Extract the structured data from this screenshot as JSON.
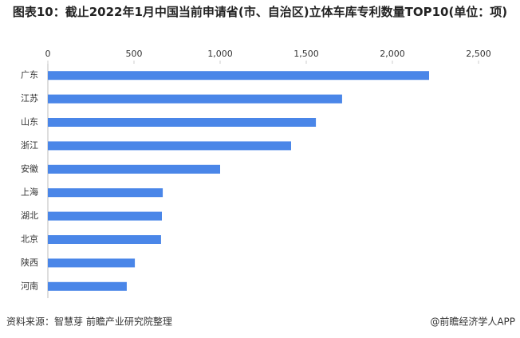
{
  "chart_data": {
    "type": "barh",
    "title": "图表10：截止2022年1月中国当前申请省(市、自治区)立体车库专利数量TOP10(单位：项)",
    "categories": [
      "广东",
      "江苏",
      "山东",
      "浙江",
      "安徽",
      "上海",
      "湖北",
      "北京",
      "陕西",
      "河南"
    ],
    "values": [
      2213,
      1708,
      1556,
      1412,
      1000,
      667,
      662,
      657,
      505,
      458
    ],
    "color": "#4a86e8",
    "xlim": [
      0,
      2500
    ],
    "xticks": [
      0,
      500,
      {
        "value": 1000,
        "label": "1,000"
      },
      {
        "value": 1500,
        "label": "1,500"
      },
      {
        "value": 2000,
        "label": "2,000"
      },
      {
        "value": 2500,
        "label": "2,500"
      }
    ],
    "source": "资料来源：智慧芽 前瞻产业研究院整理",
    "brand": "@前瞻经济学人APP"
  }
}
